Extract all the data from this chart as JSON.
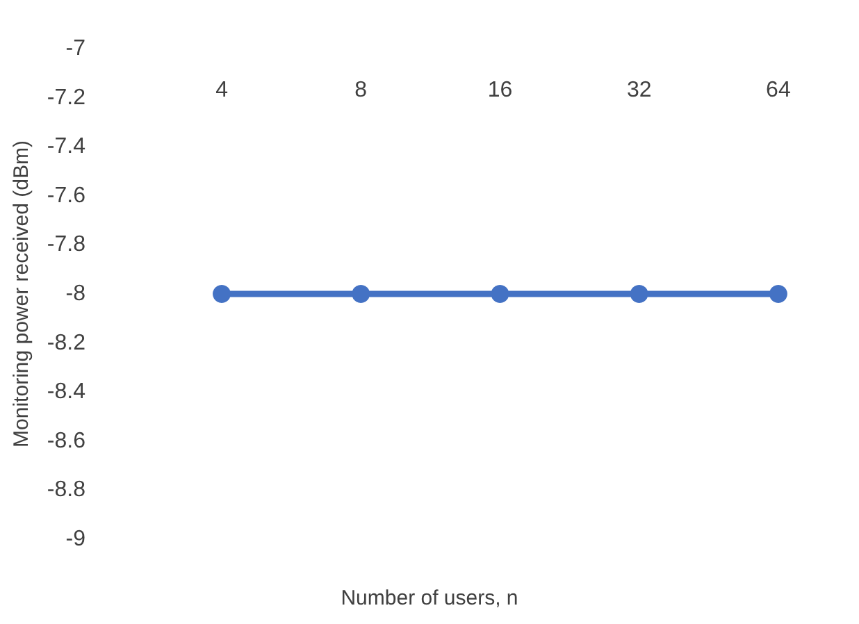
{
  "chart_data": {
    "type": "line",
    "xlabel": "Number of users, n",
    "ylabel": "Monitoring power received (dBm)",
    "categories": [
      "4",
      "8",
      "16",
      "32",
      "64"
    ],
    "series": [
      {
        "color": "#4472c4",
        "values": [
          -8,
          -8,
          -8,
          -8,
          -8
        ]
      }
    ],
    "ylim": [
      -9,
      -7
    ],
    "yticks": [
      -9,
      -8.8,
      -8.6,
      -8.4,
      -8.2,
      -8,
      -7.8,
      -7.6,
      -7.4,
      -7.2,
      -7
    ],
    "grid": false,
    "marker": "circle",
    "line_style": "solid"
  }
}
